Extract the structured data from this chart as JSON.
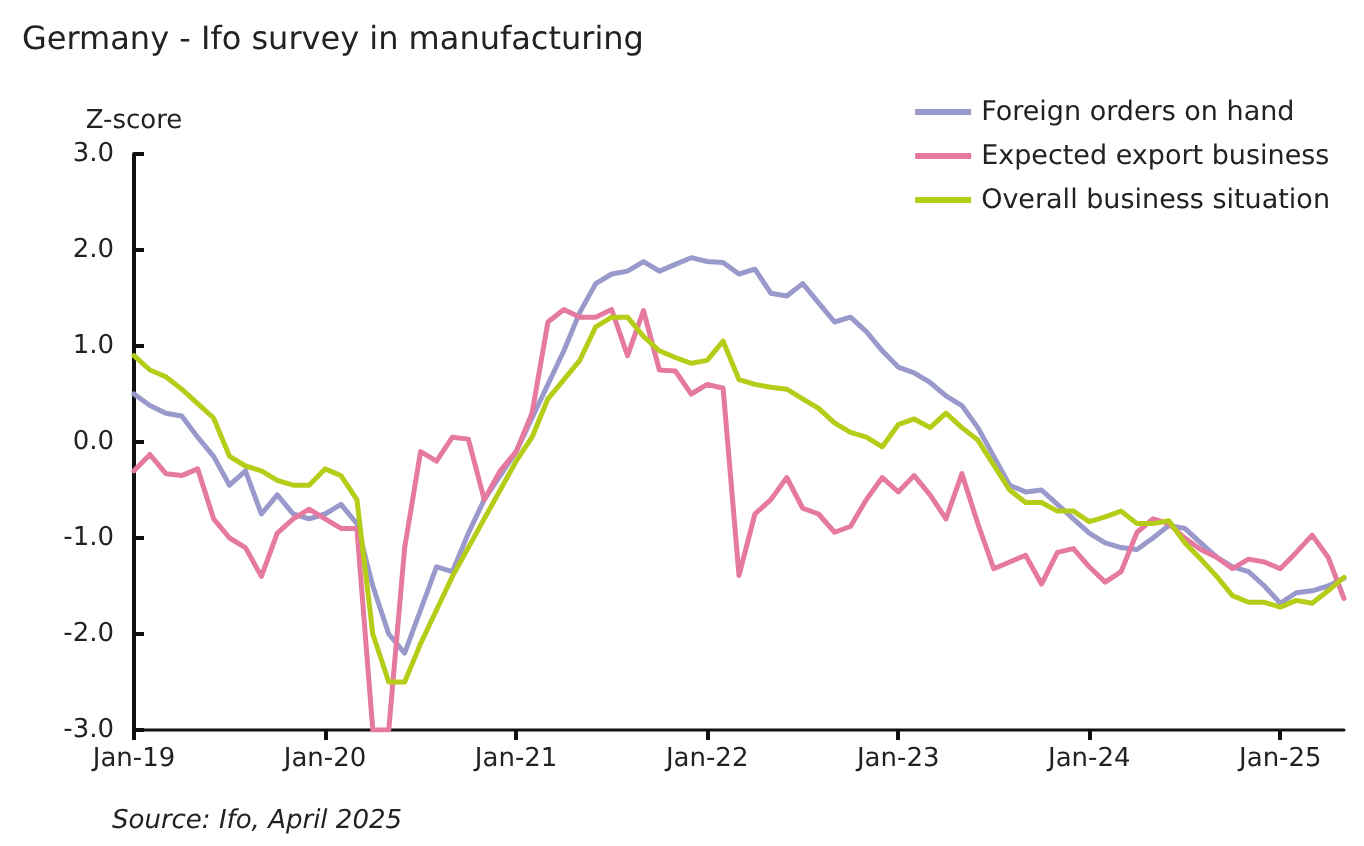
{
  "chart_data": {
    "type": "line",
    "title": "Germany - Ifo survey in manufacturing",
    "ylabel": "Z-score",
    "annotations": [
      "Source: Ifo, April 2025"
    ],
    "categories": [
      "Jan-19",
      null,
      null,
      null,
      null,
      null,
      null,
      null,
      null,
      null,
      null,
      null,
      "Jan-20",
      null,
      null,
      null,
      null,
      null,
      null,
      null,
      null,
      null,
      null,
      null,
      "Jan-21",
      null,
      null,
      null,
      null,
      null,
      null,
      null,
      null,
      null,
      null,
      null,
      "Jan-22",
      null,
      null,
      null,
      null,
      null,
      null,
      null,
      null,
      null,
      null,
      null,
      "Jan-23",
      null,
      null,
      null,
      null,
      null,
      null,
      null,
      null,
      null,
      null,
      null,
      "Jan-24",
      null,
      null,
      null,
      null,
      null,
      null,
      null,
      null,
      null,
      null,
      null,
      "Jan-25",
      null,
      null,
      null,
      null
    ],
    "series": [
      {
        "name": "Foreign orders on hand",
        "color": "#9999cc",
        "values": [
          0.5,
          0.38,
          0.3,
          0.27,
          0.05,
          -0.15,
          -0.45,
          -0.3,
          -0.75,
          -0.55,
          -0.75,
          -0.8,
          -0.75,
          -0.65,
          -0.85,
          -1.5,
          -2.0,
          -2.2,
          -1.75,
          -1.3,
          -1.35,
          -0.95,
          -0.6,
          -0.35,
          -0.1,
          0.25,
          0.6,
          0.95,
          1.35,
          1.65,
          1.75,
          1.78,
          1.88,
          1.78,
          1.85,
          1.92,
          1.88,
          1.87,
          1.75,
          1.8,
          1.55,
          1.52,
          1.65,
          1.45,
          1.25,
          1.3,
          1.15,
          0.95,
          0.78,
          0.72,
          0.62,
          0.48,
          0.38,
          0.15,
          -0.15,
          -0.45,
          -0.52,
          -0.5,
          -0.65,
          -0.8,
          -0.95,
          -1.05,
          -1.1,
          -1.12,
          -1.0,
          -0.87,
          -0.9,
          -1.05,
          -1.2,
          -1.3,
          -1.35,
          -1.5,
          -1.68,
          -1.57,
          -1.55,
          -1.5,
          -1.42
        ]
      },
      {
        "name": "Expected export business",
        "color": "#e5799f",
        "values": [
          -0.3,
          -0.13,
          -0.33,
          -0.35,
          -0.28,
          -0.8,
          -1.0,
          -1.1,
          -1.4,
          -0.95,
          -0.8,
          -0.7,
          -0.8,
          -0.9,
          -0.9,
          -3.0,
          -3.0,
          -1.1,
          -0.1,
          -0.2,
          0.05,
          0.03,
          -0.6,
          -0.3,
          -0.1,
          0.3,
          1.25,
          1.38,
          1.3,
          1.3,
          1.38,
          0.9,
          1.37,
          0.75,
          0.74,
          0.5,
          0.6,
          0.56,
          -1.39,
          -0.75,
          -0.6,
          -0.37,
          -0.69,
          -0.75,
          -0.94,
          -0.88,
          -0.6,
          -0.37,
          -0.52,
          -0.35,
          -0.55,
          -0.8,
          -0.33,
          -0.85,
          -1.32,
          -1.25,
          -1.18,
          -1.48,
          -1.15,
          -1.11,
          -1.3,
          -1.46,
          -1.35,
          -0.94,
          -0.8,
          -0.85,
          -1.0,
          -1.12,
          -1.2,
          -1.32,
          -1.22,
          -1.25,
          -1.32,
          -1.15,
          -0.97,
          -1.2,
          -1.63
        ]
      },
      {
        "name": "Overall business situation",
        "color": "#b5cc18",
        "values": [
          0.9,
          0.75,
          0.68,
          0.55,
          0.4,
          0.25,
          -0.15,
          -0.25,
          -0.3,
          -0.4,
          -0.45,
          -0.45,
          -0.28,
          -0.35,
          -0.6,
          -2.0,
          -2.5,
          -2.5,
          -2.1,
          -1.75,
          -1.4,
          -1.1,
          -0.8,
          -0.5,
          -0.2,
          0.05,
          0.45,
          0.65,
          0.85,
          1.2,
          1.3,
          1.3,
          1.1,
          0.95,
          0.88,
          0.82,
          0.85,
          1.05,
          0.65,
          0.6,
          0.57,
          0.55,
          0.45,
          0.35,
          0.2,
          0.1,
          0.05,
          -0.05,
          0.18,
          0.24,
          0.15,
          0.3,
          0.15,
          0.02,
          -0.24,
          -0.5,
          -0.63,
          -0.63,
          -0.72,
          -0.72,
          -0.83,
          -0.78,
          -0.72,
          -0.85,
          -0.85,
          -0.82,
          -1.05,
          -1.22,
          -1.4,
          -1.6,
          -1.67,
          -1.67,
          -1.72,
          -1.65,
          -1.68,
          -1.55,
          -1.41
        ]
      }
    ],
    "ylim": [
      -3,
      3
    ],
    "yticks": [
      {
        "value": -3,
        "label": "-3.0"
      },
      {
        "value": -2,
        "label": "-2.0"
      },
      {
        "value": -1,
        "label": "-1.0"
      },
      {
        "value": 0,
        "label": "0.0"
      },
      {
        "value": 1,
        "label": "1.0"
      },
      {
        "value": 2,
        "label": "2.0"
      },
      {
        "value": 3,
        "label": "3.0"
      }
    ],
    "grid": false,
    "legend": "top right",
    "marker": "none",
    "line_style": "solid"
  }
}
